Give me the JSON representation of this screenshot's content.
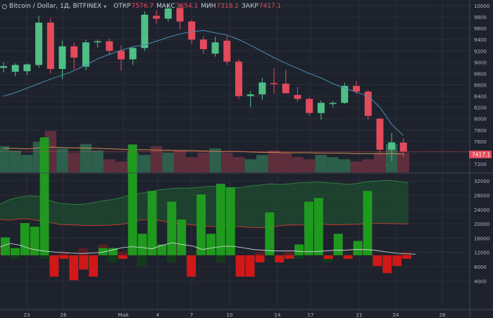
{
  "header": {
    "symbol": "Bitcoin / Dollar, 1Д, BITFINEX",
    "open_label": "ОТКР",
    "open_value": "7576.7",
    "high_label": "МАКС",
    "high_value": "7654.1",
    "low_label": "МИН",
    "low_value": "7318.2",
    "close_label": "ЗАКР",
    "close_value": "7417.1"
  },
  "colors": {
    "background": "#1e222d",
    "up": "#4fbf88",
    "down": "#e34a5c",
    "ma_line": "#4a8fb0",
    "osc_up": "#1f9a1f",
    "osc_down": "#d01818",
    "band_fill": "#1f5a30",
    "band_lower": "#c0392b"
  },
  "chart_data": [
    {
      "type": "candlestick",
      "title": "Bitcoin / Dollar, 1Д, BITFINEX",
      "ylim": [
        7050,
        10100
      ],
      "yticks": [
        7200,
        7400,
        7600,
        7800,
        8000,
        8200,
        8400,
        8600,
        8800,
        9000,
        9200,
        9400,
        9600,
        9800,
        10000
      ],
      "last_price_label": "7417.1",
      "x_labels": [
        "23",
        "26",
        "Май",
        "4",
        "7",
        "10",
        "14",
        "17",
        "21",
        "24",
        "28"
      ],
      "candles": [
        {
          "o": 8900,
          "h": 9000,
          "l": 8820,
          "c": 8930
        },
        {
          "o": 8830,
          "h": 8980,
          "l": 8750,
          "c": 8950
        },
        {
          "o": 8840,
          "h": 8980,
          "l": 8770,
          "c": 8960
        },
        {
          "o": 8950,
          "h": 9820,
          "l": 8900,
          "c": 9700
        },
        {
          "o": 9700,
          "h": 9780,
          "l": 8800,
          "c": 8880
        },
        {
          "o": 8880,
          "h": 9380,
          "l": 8700,
          "c": 9280
        },
        {
          "o": 9280,
          "h": 9350,
          "l": 8870,
          "c": 9080
        },
        {
          "o": 8920,
          "h": 9400,
          "l": 8860,
          "c": 9350
        },
        {
          "o": 9350,
          "h": 9400,
          "l": 9260,
          "c": 9370
        },
        {
          "o": 9370,
          "h": 9420,
          "l": 9120,
          "c": 9200
        },
        {
          "o": 9200,
          "h": 9300,
          "l": 8850,
          "c": 9050
        },
        {
          "o": 9050,
          "h": 9280,
          "l": 8950,
          "c": 9250
        },
        {
          "o": 9250,
          "h": 9900,
          "l": 9200,
          "c": 9840
        },
        {
          "o": 9820,
          "h": 9920,
          "l": 9680,
          "c": 9770
        },
        {
          "o": 9770,
          "h": 10020,
          "l": 9720,
          "c": 9950
        },
        {
          "o": 9960,
          "h": 10020,
          "l": 9580,
          "c": 9720
        },
        {
          "o": 9720,
          "h": 9760,
          "l": 9320,
          "c": 9400
        },
        {
          "o": 9400,
          "h": 9460,
          "l": 9150,
          "c": 9230
        },
        {
          "o": 9150,
          "h": 9450,
          "l": 9100,
          "c": 9350
        },
        {
          "o": 9380,
          "h": 9460,
          "l": 8950,
          "c": 9010
        },
        {
          "o": 9010,
          "h": 9050,
          "l": 8340,
          "c": 8400
        },
        {
          "o": 8400,
          "h": 8490,
          "l": 8200,
          "c": 8430
        },
        {
          "o": 8430,
          "h": 8720,
          "l": 8330,
          "c": 8640
        },
        {
          "o": 8630,
          "h": 8890,
          "l": 8440,
          "c": 8620
        },
        {
          "o": 8620,
          "h": 8860,
          "l": 8450,
          "c": 8450
        },
        {
          "o": 8420,
          "h": 8560,
          "l": 8300,
          "c": 8350
        },
        {
          "o": 8350,
          "h": 8380,
          "l": 8050,
          "c": 8100
        },
        {
          "o": 8100,
          "h": 8320,
          "l": 7980,
          "c": 8280
        },
        {
          "o": 8270,
          "h": 8310,
          "l": 8200,
          "c": 8280
        },
        {
          "o": 8280,
          "h": 8640,
          "l": 8260,
          "c": 8580
        },
        {
          "o": 8580,
          "h": 8670,
          "l": 8440,
          "c": 8480
        },
        {
          "o": 8480,
          "h": 8510,
          "l": 7980,
          "c": 8050
        },
        {
          "o": 8000,
          "h": 8010,
          "l": 7400,
          "c": 7450
        },
        {
          "o": 7450,
          "h": 7750,
          "l": 7250,
          "c": 7580
        },
        {
          "o": 7576.7,
          "h": 7654.1,
          "l": 7318.2,
          "c": 7417.1
        }
      ],
      "ma_line": [
        8400,
        8460,
        8540,
        8620,
        8700,
        8770,
        8850,
        8950,
        9060,
        9140,
        9210,
        9270,
        9310,
        9370,
        9440,
        9500,
        9540,
        9560,
        9520,
        9480,
        9400,
        9300,
        9190,
        9080,
        8980,
        8890,
        8800,
        8720,
        8620,
        8540,
        8470,
        8400,
        8200,
        7900,
        7700
      ],
      "volume_ylim": [
        0,
        100
      ],
      "volumes": [
        60,
        50,
        40,
        70,
        95,
        55,
        45,
        65,
        50,
        30,
        25,
        45,
        40,
        60,
        45,
        50,
        35,
        45,
        55,
        45,
        35,
        30,
        40,
        50,
        45,
        35,
        30,
        40,
        35,
        30,
        25,
        30,
        45,
        65,
        45
      ],
      "volume_ma": [
        55,
        55,
        54,
        56,
        58,
        57,
        56,
        56,
        55,
        54,
        53,
        52,
        52,
        51,
        51,
        50,
        50,
        49,
        48,
        48,
        48,
        47,
        46,
        46,
        45,
        45,
        45,
        44,
        44,
        44,
        43,
        43,
        43,
        43,
        42
      ]
    },
    {
      "type": "bar",
      "ylim": [
        -4000,
        34000
      ],
      "yticks": [
        4000,
        8000,
        12000,
        16000,
        20000,
        24000,
        28000,
        32000
      ],
      "bar_values": [
        5000,
        2000,
        9000,
        8000,
        33000,
        -6000,
        -1000,
        -7000,
        -4000,
        -6000,
        2000,
        2000,
        -1000,
        31000,
        6000,
        18000,
        3000,
        15000,
        10000,
        -6000,
        17000,
        6000,
        20000,
        19000,
        -6000,
        -6000,
        -2000,
        12000,
        -2000,
        -1000,
        3000,
        15000,
        16000,
        -1000,
        6000,
        -1000,
        4000,
        18000,
        -3000,
        -5000,
        -3000,
        -1000
      ],
      "shadow_values": [
        2000,
        -1000,
        1000,
        3000,
        -1000,
        -3000,
        1000,
        -2000,
        2000,
        -4000,
        3000,
        -2000,
        1000,
        2000,
        -3000,
        4000,
        2000,
        -2000,
        3000,
        -3000,
        2000,
        1000,
        -2000,
        3000,
        -2000,
        -3000,
        1000,
        2000,
        -2000,
        1000,
        -1000,
        2000,
        1000,
        -2000,
        2000,
        -1000,
        1000,
        2000,
        -2000,
        -1000,
        -2000,
        1000
      ],
      "signal_line": [
        13500,
        14500,
        14000,
        13000,
        12500,
        12200,
        12000,
        11800,
        11700,
        11800,
        12000,
        12600,
        13300,
        13600,
        13400,
        13000,
        14000,
        14700,
        14200,
        13800,
        12800,
        13300,
        13700,
        13700,
        13300,
        12800,
        12600,
        12400,
        12400,
        12400,
        12200,
        12200,
        12400,
        12600,
        12600,
        12800,
        12800,
        12600,
        12200,
        11800,
        11600,
        11500
      ],
      "band_upper": [
        25500,
        26800,
        27500,
        27800,
        27600,
        26500,
        25700,
        25500,
        25400,
        25700,
        26300,
        26700,
        27200,
        28000,
        28500,
        29000,
        29500,
        29800,
        30000,
        30000,
        30200,
        30500,
        30400,
        30100,
        30100,
        30500,
        30800,
        31200,
        31000,
        31200,
        31500,
        31600,
        31700,
        31500,
        31300,
        31000,
        31400,
        31800,
        32000,
        32200,
        31800,
        31500
      ],
      "band_lower": [
        21200,
        21000,
        21400,
        21300,
        20800,
        20400,
        19800,
        19700,
        19600,
        19500,
        19500,
        19600,
        19800,
        20300,
        21000,
        21200,
        20900,
        20400,
        20100,
        19800,
        19500,
        19300,
        19100,
        19200,
        19200,
        19000,
        18900,
        19000,
        19400,
        19700,
        19600,
        19800,
        19900,
        19800,
        19700,
        19800,
        19900,
        20000,
        20100,
        20100,
        20000,
        20000
      ]
    }
  ]
}
